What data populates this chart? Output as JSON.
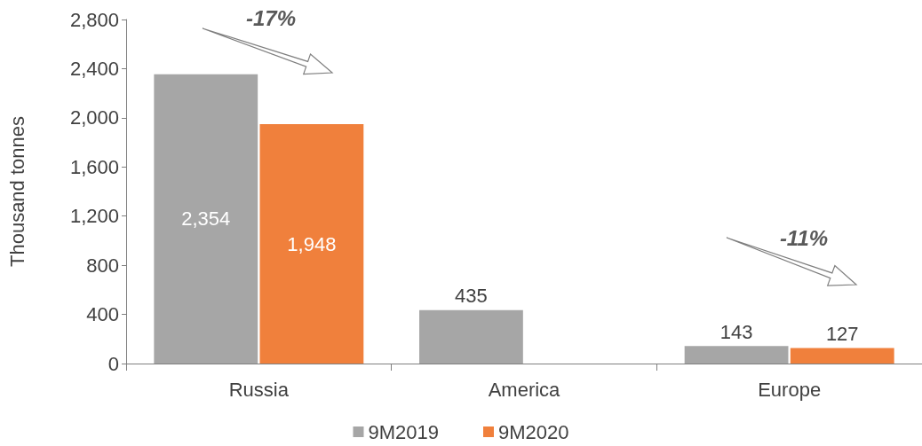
{
  "chart_data": {
    "type": "bar",
    "ylabel": "Thousand tonnes",
    "categories": [
      "Russia",
      "America",
      "Europe"
    ],
    "series": [
      {
        "name": "9M2019",
        "color": "#a6a6a6",
        "values": [
          2354,
          435,
          143
        ],
        "value_labels": [
          "2,354",
          "435",
          "143"
        ]
      },
      {
        "name": "9M2020",
        "color": "#f0803c",
        "values": [
          1948,
          null,
          127
        ],
        "value_labels": [
          "1,948",
          null,
          "127"
        ]
      }
    ],
    "ylim": [
      0,
      2800
    ],
    "yticks": [
      {
        "value": 0,
        "label": "0"
      },
      {
        "value": 400,
        "label": "400"
      },
      {
        "value": 800,
        "label": "800"
      },
      {
        "value": 1200,
        "label": "1,200"
      },
      {
        "value": 1600,
        "label": "1,600"
      },
      {
        "value": 2000,
        "label": "2,000"
      },
      {
        "value": 2400,
        "label": "2,400"
      },
      {
        "value": 2800,
        "label": "2,800"
      }
    ],
    "grid": false,
    "legend": "bottom",
    "annotations": [
      "-17%",
      "-11%"
    ]
  }
}
